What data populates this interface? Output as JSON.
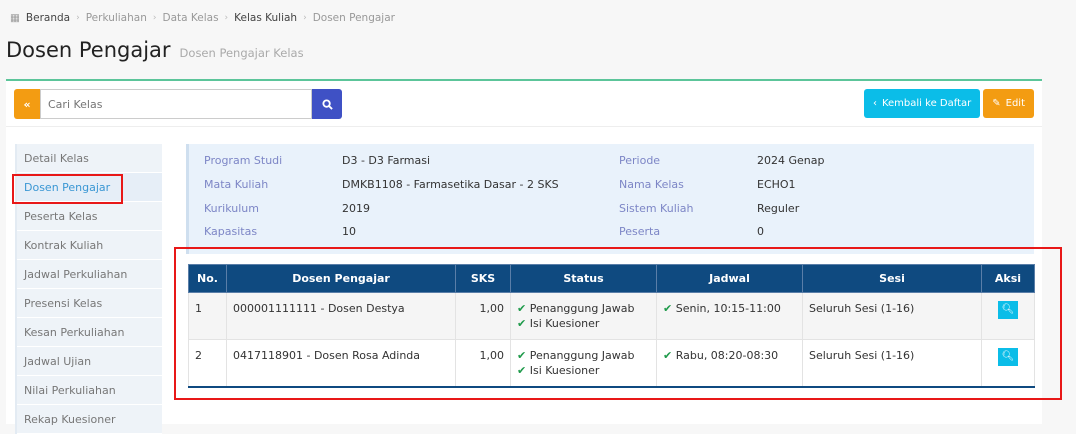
{
  "breadcrumb": [
    {
      "label": "Beranda"
    },
    {
      "label": "Perkuliahan"
    },
    {
      "label": "Data Kelas"
    },
    {
      "label": "Kelas Kuliah"
    },
    {
      "label": "Dosen Pengajar"
    }
  ],
  "header": {
    "title": "Dosen Pengajar",
    "subtitle": "Dosen Pengajar Kelas"
  },
  "toolbar": {
    "search_placeholder": "Cari Kelas",
    "back_label": "Kembali ke Daftar",
    "edit_label": "Edit"
  },
  "sidebar": {
    "items": [
      {
        "label": "Detail Kelas"
      },
      {
        "label": "Dosen Pengajar",
        "active": true
      },
      {
        "label": "Peserta Kelas"
      },
      {
        "label": "Kontrak Kuliah"
      },
      {
        "label": "Jadwal Perkuliahan"
      },
      {
        "label": "Presensi Kelas"
      },
      {
        "label": "Kesan Perkuliahan"
      },
      {
        "label": "Jadwal Ujian"
      },
      {
        "label": "Nilai Perkuliahan"
      },
      {
        "label": "Rekap Kuesioner"
      }
    ]
  },
  "info": {
    "program_studi": {
      "label": "Program Studi",
      "value": "D3 - D3 Farmasi"
    },
    "periode": {
      "label": "Periode",
      "value": "2024 Genap"
    },
    "mata_kuliah": {
      "label": "Mata Kuliah",
      "value": "DMKB1108 - Farmasetika Dasar - 2 SKS"
    },
    "nama_kelas": {
      "label": "Nama Kelas",
      "value": "ECHO1"
    },
    "kurikulum": {
      "label": "Kurikulum",
      "value": "2019"
    },
    "sistem_kuliah": {
      "label": "Sistem Kuliah",
      "value": "Reguler"
    },
    "kapasitas": {
      "label": "Kapasitas",
      "value": "10"
    },
    "peserta": {
      "label": "Peserta",
      "value": "0"
    }
  },
  "table": {
    "headers": [
      "No.",
      "Dosen Pengajar",
      "SKS",
      "Status",
      "Jadwal",
      "Sesi",
      "Aksi"
    ],
    "rows": [
      {
        "no": "1",
        "dosen": "000001111111 - Dosen Destya",
        "sks": "1,00",
        "status1": "Penanggung Jawab",
        "status2": "Isi Kuesioner",
        "jadwal": "Senin, 10:15-11:00",
        "sesi": "Seluruh Sesi (1-16)"
      },
      {
        "no": "2",
        "dosen": "0417118901 - Dosen Rosa Adinda",
        "sks": "1,00",
        "status1": "Penanggung Jawab",
        "status2": "Isi Kuesioner",
        "jadwal": "Rabu, 08:20-08:30",
        "sesi": "Seluruh Sesi (1-16)"
      }
    ]
  }
}
